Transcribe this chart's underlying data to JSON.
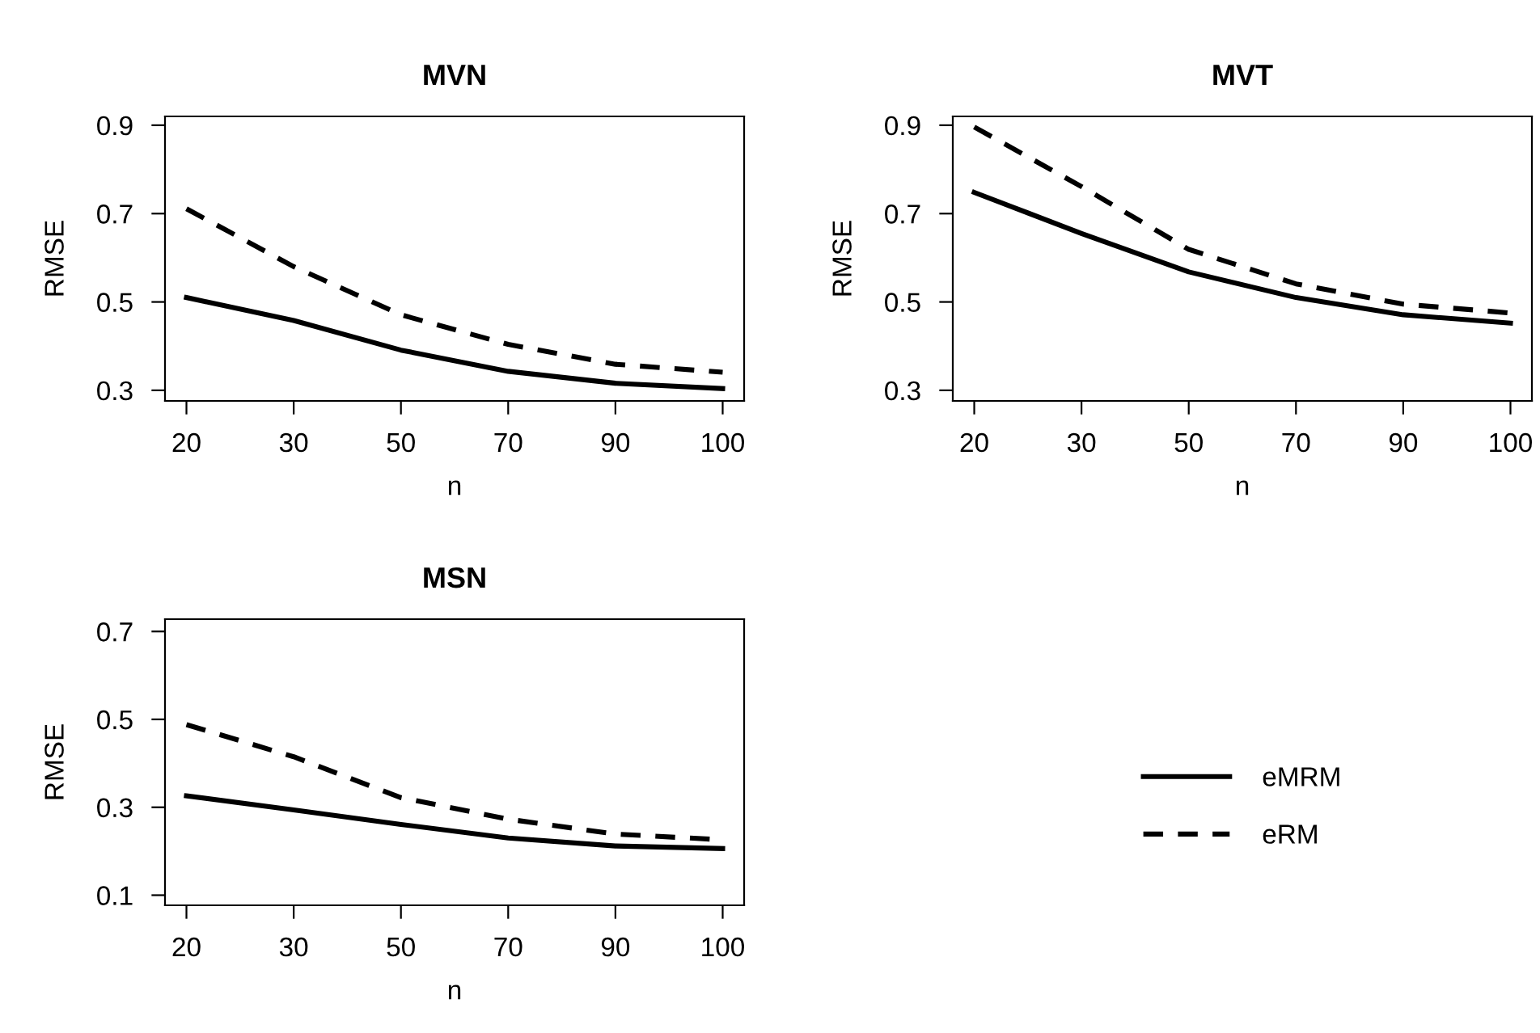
{
  "chart_data": [
    {
      "type": "line",
      "title": "MVN",
      "xlabel": "n",
      "ylabel": "RMSE",
      "categories": [
        "20",
        "30",
        "50",
        "70",
        "90",
        "100"
      ],
      "ylim": [
        0.276,
        0.92
      ],
      "yticks": [
        0.3,
        0.5,
        0.7,
        0.9
      ],
      "grid": false,
      "legend": false,
      "marker": "none",
      "series": [
        {
          "color": "#000000",
          "line_style": "solid",
          "values": [
            0.51,
            0.458,
            0.391,
            0.343,
            0.316,
            0.304
          ]
        },
        {
          "color": "#000000",
          "line_style": "dashed",
          "values": [
            0.711,
            0.58,
            0.471,
            0.404,
            0.359,
            0.341
          ]
        }
      ]
    },
    {
      "type": "line",
      "title": "MVT",
      "xlabel": "n",
      "ylabel": "RMSE",
      "categories": [
        "20",
        "30",
        "50",
        "70",
        "90",
        "100"
      ],
      "ylim": [
        0.276,
        0.92
      ],
      "yticks": [
        0.3,
        0.5,
        0.7,
        0.9
      ],
      "grid": false,
      "legend": "bottom",
      "marker": "none",
      "series": [
        {
          "name": "eMRM",
          "color": "#000000",
          "line_style": "solid",
          "values": [
            0.748,
            0.655,
            0.568,
            0.51,
            0.471,
            0.452
          ]
        },
        {
          "name": "eRM",
          "color": "#000000",
          "line_style": "dashed",
          "values": [
            0.896,
            0.761,
            0.619,
            0.541,
            0.495,
            0.475
          ]
        }
      ]
    },
    {
      "type": "line",
      "title": "MSN",
      "xlabel": "n",
      "ylabel": "RMSE",
      "categories": [
        "20",
        "30",
        "50",
        "70",
        "90",
        "100"
      ],
      "ylim": [
        0.077,
        0.728
      ],
      "yticks": [
        0.1,
        0.3,
        0.5,
        0.7
      ],
      "grid": false,
      "legend": false,
      "marker": "none",
      "series": [
        {
          "color": "#000000",
          "line_style": "solid",
          "values": [
            0.326,
            0.294,
            0.261,
            0.23,
            0.212,
            0.206
          ]
        },
        {
          "color": "#000000",
          "line_style": "dashed",
          "values": [
            0.488,
            0.415,
            0.322,
            0.273,
            0.239,
            0.226
          ]
        }
      ]
    }
  ]
}
